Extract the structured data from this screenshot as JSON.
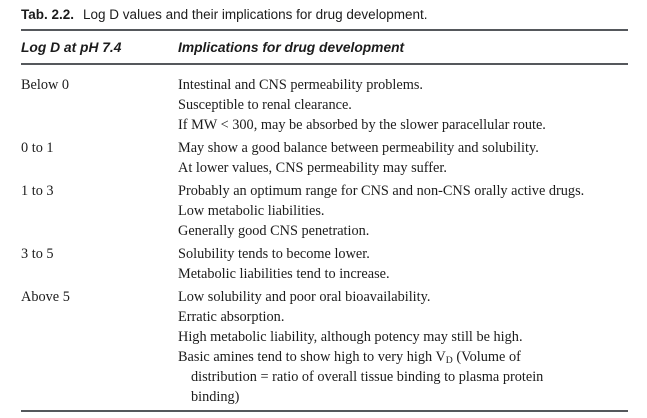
{
  "colors": {
    "text": "#1c1c1c",
    "rule": "#55585c",
    "background": "#ffffff"
  },
  "caption": {
    "label": "Tab. 2.2.",
    "text": "Log D values and their implications for drug development."
  },
  "table": {
    "header": {
      "col1": "Log D at pH 7.4",
      "col2": "Implications for drug development"
    },
    "rows": [
      {
        "logd": "Below 0",
        "lines": [
          {
            "segs": [
              {
                "t": "Intestinal and CNS permeability problems."
              }
            ]
          },
          {
            "segs": [
              {
                "t": "Susceptible to renal clearance."
              }
            ]
          },
          {
            "segs": [
              {
                "t": "If MW < 300, may be absorbed by the slower paracellular route."
              }
            ]
          }
        ]
      },
      {
        "logd": "0 to 1",
        "lines": [
          {
            "segs": [
              {
                "t": "May show a good balance between permeability and solubility."
              }
            ]
          },
          {
            "segs": [
              {
                "t": "At lower values, CNS permeability may suffer."
              }
            ]
          }
        ]
      },
      {
        "logd": "1 to 3",
        "lines": [
          {
            "segs": [
              {
                "t": "Probably an optimum range for CNS and non-CNS orally active drugs."
              }
            ]
          },
          {
            "segs": [
              {
                "t": "Low metabolic liabilities."
              }
            ]
          },
          {
            "segs": [
              {
                "t": "Generally good CNS penetration."
              }
            ]
          }
        ]
      },
      {
        "logd": "3 to 5",
        "lines": [
          {
            "segs": [
              {
                "t": "Solubility tends to become lower."
              }
            ]
          },
          {
            "segs": [
              {
                "t": "Metabolic liabilities tend to increase."
              }
            ]
          }
        ]
      },
      {
        "logd": "Above 5",
        "lines": [
          {
            "segs": [
              {
                "t": "Low solubility and poor oral bioavailability."
              }
            ]
          },
          {
            "segs": [
              {
                "t": "Erratic absorption."
              }
            ]
          },
          {
            "segs": [
              {
                "t": "High metabolic liability, although potency may still be high."
              }
            ]
          },
          {
            "segs": [
              {
                "t": "Basic amines tend to show high to very high V"
              },
              {
                "t": "D",
                "sub": true
              },
              {
                "t": " (Volume of"
              }
            ]
          },
          {
            "indent": true,
            "segs": [
              {
                "t": "distribution = ratio of overall tissue binding to plasma protein"
              }
            ]
          },
          {
            "indent": true,
            "segs": [
              {
                "t": "binding)"
              }
            ]
          }
        ]
      }
    ]
  }
}
